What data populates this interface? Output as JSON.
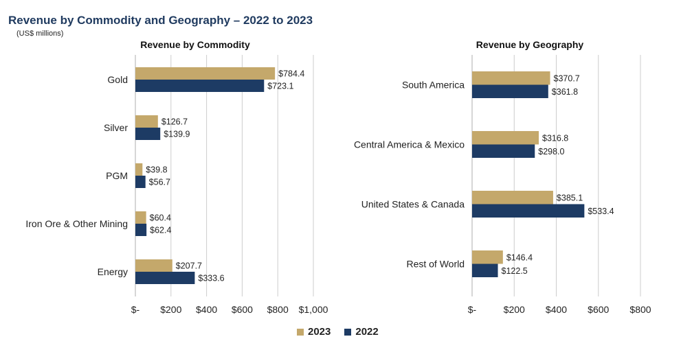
{
  "page": {
    "title": "Revenue by Commodity and Geography – 2022 to 2023",
    "subtitle": "(US$ millions)"
  },
  "colors": {
    "y2023": "#c4a86b",
    "y2022": "#1d3b64",
    "grid": "#cccccc",
    "title": "#1f3a5f"
  },
  "legend": [
    {
      "label": "2023",
      "color_key": "y2023"
    },
    {
      "label": "2022",
      "color_key": "y2022"
    }
  ],
  "chart_data": [
    {
      "type": "bar",
      "orientation": "horizontal",
      "title": "Revenue by Commodity",
      "categories": [
        "Gold",
        "Silver",
        "PGM",
        "Iron Ore & Other Mining",
        "Energy"
      ],
      "series": [
        {
          "name": "2023",
          "values": [
            784.4,
            126.7,
            39.8,
            60.4,
            207.7
          ],
          "labels": [
            "$784.4",
            "$126.7",
            "$39.8",
            "$60.4",
            "$207.7"
          ]
        },
        {
          "name": "2022",
          "values": [
            723.1,
            139.9,
            56.7,
            62.4,
            333.6
          ],
          "labels": [
            "$723.1",
            "$139.9",
            "$56.7",
            "$62.4",
            "$333.6"
          ]
        }
      ],
      "xlim": [
        0,
        1000
      ],
      "ticks": [
        0,
        200,
        400,
        600,
        800,
        1000
      ],
      "tick_labels": [
        "$-",
        "$200",
        "$400",
        "$600",
        "$800",
        "$1,000"
      ],
      "grid": true
    },
    {
      "type": "bar",
      "orientation": "horizontal",
      "title": "Revenue by Geography",
      "categories": [
        "South America",
        "Central America & Mexico",
        "United States & Canada",
        "Rest of World"
      ],
      "series": [
        {
          "name": "2023",
          "values": [
            370.7,
            316.8,
            385.1,
            146.4
          ],
          "labels": [
            "$370.7",
            "$316.8",
            "$385.1",
            "$146.4"
          ]
        },
        {
          "name": "2022",
          "values": [
            361.8,
            298.0,
            533.4,
            122.5
          ],
          "labels": [
            "$361.8",
            "$298.0",
            "$533.4",
            "$122.5"
          ]
        }
      ],
      "xlim": [
        0,
        800
      ],
      "ticks": [
        0,
        200,
        400,
        600,
        800
      ],
      "tick_labels": [
        "$-",
        "$200",
        "$400",
        "$600",
        "$800"
      ],
      "grid": true
    }
  ]
}
